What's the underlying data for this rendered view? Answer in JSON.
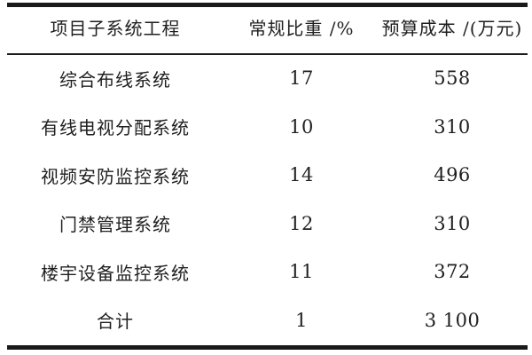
{
  "chart_data": {
    "type": "table",
    "columns": [
      "项目子系统工程",
      "常规比重 /%",
      "预算成本 /(万元)"
    ],
    "rows": [
      [
        "综合布线系统",
        "17",
        "558"
      ],
      [
        "有线电视分配系统",
        "10",
        "310"
      ],
      [
        "视频安防监控系统",
        "14",
        "496"
      ],
      [
        "门禁管理系统",
        "12",
        "310"
      ],
      [
        "楼宇设备监控系统",
        "11",
        "372"
      ],
      [
        "合计",
        "1",
        "3 100"
      ]
    ],
    "layout_hints": {
      "style": "three-line booktabs table",
      "top_rule": "thick",
      "header_rule": "thin",
      "bottom_rule": "thick",
      "alignment": "center"
    }
  },
  "colors": {
    "rule": "#1a1a1a",
    "text": "#1f1f1f",
    "background": "#ffffff"
  }
}
